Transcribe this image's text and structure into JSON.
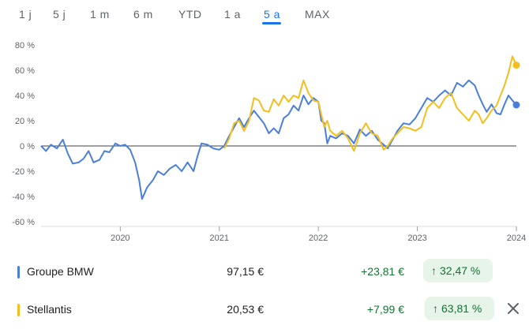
{
  "tabs": [
    {
      "label": "1 j"
    },
    {
      "label": "5 j"
    },
    {
      "label": "1 m"
    },
    {
      "label": "6 m"
    },
    {
      "label": "YTD"
    },
    {
      "label": "1 a"
    },
    {
      "label": "5 a",
      "active": true
    },
    {
      "label": "MAX"
    }
  ],
  "chart_data": {
    "type": "line",
    "x_ticks": [
      "2020",
      "2021",
      "2022",
      "2023",
      "2024"
    ],
    "y_ticks": [
      "80 %",
      "60 %",
      "40 %",
      "20 %",
      "0 %",
      "-20 %",
      "-40 %",
      "-60 %"
    ],
    "ylim": [
      -60,
      80
    ],
    "xlim": [
      2019.2,
      2024.0
    ],
    "zero_line": true,
    "series": [
      {
        "name": "Groupe BMW",
        "color": "#4a7fd9",
        "points": [
          [
            2019.2,
            0
          ],
          [
            2019.25,
            -4
          ],
          [
            2019.3,
            1
          ],
          [
            2019.36,
            -2
          ],
          [
            2019.42,
            5
          ],
          [
            2019.47,
            -6
          ],
          [
            2019.52,
            -14
          ],
          [
            2019.58,
            -13
          ],
          [
            2019.63,
            -10
          ],
          [
            2019.68,
            -4
          ],
          [
            2019.73,
            -13
          ],
          [
            2019.79,
            -11
          ],
          [
            2019.84,
            -4
          ],
          [
            2019.89,
            -5
          ],
          [
            2019.95,
            2
          ],
          [
            2020.0,
            0
          ],
          [
            2020.05,
            1
          ],
          [
            2020.1,
            -3
          ],
          [
            2020.15,
            -13
          ],
          [
            2020.19,
            -27
          ],
          [
            2020.22,
            -42
          ],
          [
            2020.27,
            -33
          ],
          [
            2020.33,
            -27
          ],
          [
            2020.38,
            -20
          ],
          [
            2020.44,
            -23
          ],
          [
            2020.5,
            -18
          ],
          [
            2020.56,
            -15
          ],
          [
            2020.62,
            -20
          ],
          [
            2020.68,
            -13
          ],
          [
            2020.74,
            -20
          ],
          [
            2020.78,
            -8
          ],
          [
            2020.82,
            2
          ],
          [
            2020.88,
            1
          ],
          [
            2020.94,
            -2
          ],
          [
            2021.0,
            -3
          ],
          [
            2021.05,
            0
          ],
          [
            2021.1,
            8
          ],
          [
            2021.15,
            15
          ],
          [
            2021.2,
            22
          ],
          [
            2021.25,
            15
          ],
          [
            2021.3,
            22
          ],
          [
            2021.35,
            28
          ],
          [
            2021.4,
            23
          ],
          [
            2021.45,
            18
          ],
          [
            2021.5,
            10
          ],
          [
            2021.55,
            14
          ],
          [
            2021.6,
            10
          ],
          [
            2021.65,
            22
          ],
          [
            2021.7,
            25
          ],
          [
            2021.75,
            32
          ],
          [
            2021.8,
            28
          ],
          [
            2021.85,
            40
          ],
          [
            2021.9,
            33
          ],
          [
            2021.95,
            38
          ],
          [
            2022.0,
            35
          ],
          [
            2022.03,
            20
          ],
          [
            2022.06,
            18
          ],
          [
            2022.09,
            2
          ],
          [
            2022.12,
            8
          ],
          [
            2022.18,
            6
          ],
          [
            2022.24,
            10
          ],
          [
            2022.3,
            8
          ],
          [
            2022.36,
            2
          ],
          [
            2022.42,
            13
          ],
          [
            2022.48,
            8
          ],
          [
            2022.54,
            12
          ],
          [
            2022.6,
            5
          ],
          [
            2022.66,
            1
          ],
          [
            2022.7,
            -2
          ],
          [
            2022.75,
            5
          ],
          [
            2022.8,
            12
          ],
          [
            2022.86,
            18
          ],
          [
            2022.92,
            17
          ],
          [
            2022.98,
            22
          ],
          [
            2023.04,
            30
          ],
          [
            2023.1,
            38
          ],
          [
            2023.16,
            35
          ],
          [
            2023.22,
            40
          ],
          [
            2023.28,
            44
          ],
          [
            2023.34,
            40
          ],
          [
            2023.4,
            50
          ],
          [
            2023.46,
            47
          ],
          [
            2023.52,
            52
          ],
          [
            2023.58,
            48
          ],
          [
            2023.62,
            40
          ],
          [
            2023.66,
            33
          ],
          [
            2023.7,
            27
          ],
          [
            2023.75,
            33
          ],
          [
            2023.8,
            26
          ],
          [
            2023.84,
            25
          ],
          [
            2023.88,
            33
          ],
          [
            2023.92,
            40
          ],
          [
            2023.96,
            36
          ],
          [
            2024.0,
            32.5
          ]
        ]
      },
      {
        "name": "Stellantis",
        "color": "#f3be1e",
        "points": [
          [
            2021.05,
            -2
          ],
          [
            2021.1,
            6
          ],
          [
            2021.15,
            18
          ],
          [
            2021.2,
            20
          ],
          [
            2021.25,
            12
          ],
          [
            2021.3,
            20
          ],
          [
            2021.35,
            38
          ],
          [
            2021.4,
            36
          ],
          [
            2021.45,
            28
          ],
          [
            2021.5,
            27
          ],
          [
            2021.55,
            37
          ],
          [
            2021.6,
            32
          ],
          [
            2021.65,
            40
          ],
          [
            2021.7,
            35
          ],
          [
            2021.75,
            40
          ],
          [
            2021.8,
            38
          ],
          [
            2021.85,
            52
          ],
          [
            2021.9,
            42
          ],
          [
            2021.95,
            36
          ],
          [
            2022.0,
            35
          ],
          [
            2022.03,
            25
          ],
          [
            2022.06,
            15
          ],
          [
            2022.09,
            20
          ],
          [
            2022.12,
            12
          ],
          [
            2022.18,
            8
          ],
          [
            2022.24,
            12
          ],
          [
            2022.3,
            6
          ],
          [
            2022.36,
            -4
          ],
          [
            2022.42,
            10
          ],
          [
            2022.48,
            18
          ],
          [
            2022.54,
            10
          ],
          [
            2022.6,
            8
          ],
          [
            2022.66,
            -3
          ],
          [
            2022.7,
            0
          ],
          [
            2022.75,
            6
          ],
          [
            2022.8,
            10
          ],
          [
            2022.86,
            15
          ],
          [
            2022.92,
            14
          ],
          [
            2022.98,
            12
          ],
          [
            2023.04,
            15
          ],
          [
            2023.1,
            30
          ],
          [
            2023.16,
            35
          ],
          [
            2023.22,
            30
          ],
          [
            2023.28,
            38
          ],
          [
            2023.34,
            42
          ],
          [
            2023.4,
            30
          ],
          [
            2023.46,
            25
          ],
          [
            2023.52,
            20
          ],
          [
            2023.58,
            28
          ],
          [
            2023.62,
            25
          ],
          [
            2023.66,
            18
          ],
          [
            2023.7,
            22
          ],
          [
            2023.75,
            28
          ],
          [
            2023.8,
            32
          ],
          [
            2023.84,
            40
          ],
          [
            2023.88,
            48
          ],
          [
            2023.92,
            58
          ],
          [
            2023.96,
            71
          ],
          [
            2024.0,
            64
          ]
        ]
      }
    ]
  },
  "legend_rows": [
    {
      "name": "Groupe BMW",
      "price": "97,15 €",
      "change": "+23,81 €",
      "pct": "32,47 %",
      "color": "#4a7fd9"
    },
    {
      "name": "Stellantis",
      "price": "20,53 €",
      "change": "+7,99 €",
      "pct": "63,81 %",
      "color": "#f3be1e"
    }
  ],
  "pct_arrow": "↑",
  "close_icon": "close-icon"
}
